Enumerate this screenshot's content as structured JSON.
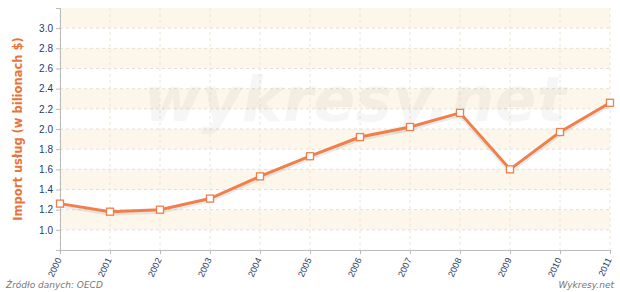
{
  "chart_data": {
    "type": "line",
    "y_label": "Import usług (w bilionach $)",
    "categories": [
      "2000",
      "2001",
      "2002",
      "2003",
      "2004",
      "2005",
      "2006",
      "2007",
      "2008",
      "2009",
      "2010",
      "2011"
    ],
    "values": [
      1.26,
      1.18,
      1.2,
      1.31,
      1.53,
      1.73,
      1.92,
      2.02,
      2.16,
      1.6,
      1.97,
      2.26
    ],
    "color": "#f07f4c",
    "marker": "square",
    "ylim": [
      0.8,
      3.2
    ],
    "yticks": [
      {
        "value": 1,
        "label": "1.0"
      },
      1.2,
      1.4,
      1.6,
      1.8,
      {
        "value": 2,
        "label": "2.0"
      },
      2.2,
      2.4,
      2.6,
      2.8,
      {
        "value": 3,
        "label": "3.0"
      }
    ],
    "grid": true,
    "annotations": [
      "wykresy.net",
      "Źródło danych: OECD",
      "Wykresy.net"
    ]
  }
}
